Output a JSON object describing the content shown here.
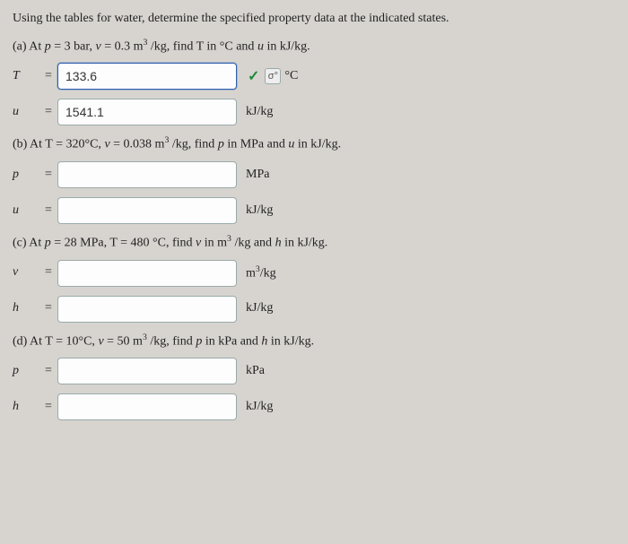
{
  "intro": "Using the tables for water, determine the specified property data at the indicated states.",
  "a": {
    "prompt_pre": "(a) At ",
    "cond_p": "p",
    "cond_p_val": " = 3 bar, ",
    "cond_v": "v",
    "cond_v_val": " = 0.3 m",
    "cond_v_exp": "3",
    "cond_v_tail": " /kg, find T in °C and ",
    "cond_u": "u",
    "cond_tail": " in kJ/kg.",
    "T_label": "T",
    "T_value": "133.6",
    "T_unit": "°C",
    "u_label": "u",
    "u_value": "1541.1",
    "u_unit": "kJ/kg",
    "check": "✓",
    "tol": "σ°"
  },
  "b": {
    "prompt_pre": "(b) At T = 320°C, ",
    "cond_v": "v",
    "cond_v_val": " = 0.038  m",
    "cond_v_exp": "3",
    "cond_v_tail": " /kg, find ",
    "cond_p": "p",
    "cond_mid": " in MPa and ",
    "cond_u": "u",
    "cond_tail": " in kJ/kg.",
    "p_label": "p",
    "p_value": "",
    "p_unit": "MPa",
    "u_label": "u",
    "u_value": "",
    "u_unit": "kJ/kg"
  },
  "c": {
    "prompt_pre": "(c) At ",
    "cond_p": "p",
    "cond_p_val": " = 28 MPa, T = 480 °C, find ",
    "cond_v": "v",
    "cond_mid": " in m",
    "cond_v_exp": "3",
    "cond_v_tail": " /kg and ",
    "cond_h": "h",
    "cond_tail": " in kJ/kg.",
    "v_label": "v",
    "v_value": "",
    "v_unit_pre": "m",
    "v_unit_exp": "3",
    "v_unit_post": "/kg",
    "h_label": "h",
    "h_value": "",
    "h_unit": "kJ/kg"
  },
  "d": {
    "prompt_pre": "(d) At T = 10°C, ",
    "cond_v": "v",
    "cond_v_val": " = 50 m",
    "cond_v_exp": "3",
    "cond_v_tail": " /kg, find ",
    "cond_p": "p",
    "cond_mid": " in kPa and ",
    "cond_h": "h",
    "cond_tail": " in kJ/kg.",
    "p_label": "p",
    "p_value": "",
    "p_unit": "kPa",
    "h_label": "h",
    "h_value": "",
    "h_unit": "kJ/kg"
  },
  "eq": " = "
}
